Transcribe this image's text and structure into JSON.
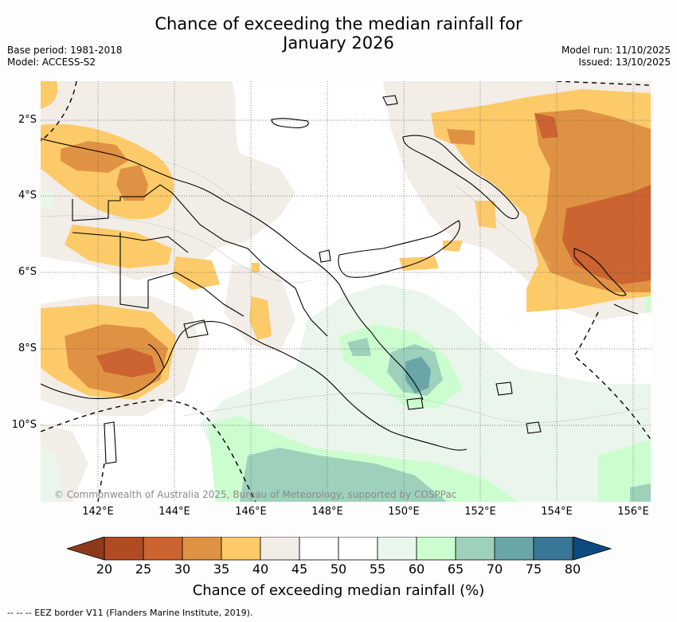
{
  "title_line1": "Chance of exceeding the median rainfall for",
  "title_line2": "January 2026",
  "base_period": "Base period: 1981-2018",
  "model": "Model: ACCESS-S2",
  "model_run": "Model run: 11/10/2025",
  "issued": "Issued: 13/10/2025",
  "credit": "© Commonwealth of Australia 2025, Bureau of Meteorology, supported by COSPPac",
  "x_ticks": [
    "142°E",
    "144°E",
    "146°E",
    "148°E",
    "150°E",
    "152°E",
    "154°E",
    "156°E"
  ],
  "y_ticks": [
    "2°S",
    "4°S",
    "6°S",
    "8°S",
    "10°S"
  ],
  "colorbar": {
    "label": "Chance of exceeding median rainfall (%)",
    "ticks": [
      "20",
      "25",
      "30",
      "35",
      "40",
      "45",
      "50",
      "55",
      "60",
      "65",
      "70",
      "75",
      "80"
    ],
    "colors": [
      "#b14b22",
      "#cb6430",
      "#e09244",
      "#fdca69",
      "#f2ede7",
      "#ffffff",
      "#ffffff",
      "#eaf5eb",
      "#ccfdcf",
      "#9dd1bb",
      "#6aa6a8",
      "#3a7796"
    ],
    "under_color": "#8e3a1a",
    "over_color": "#0e4a80"
  },
  "legend_text": "-- -- -- EEZ border V11 (Flanders Marine Institute, 2019)."
}
